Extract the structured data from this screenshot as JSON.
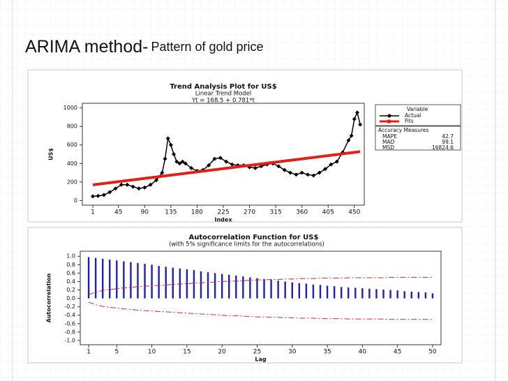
{
  "header": {
    "title": "ARIMA method-",
    "subtitle": "Pattern of gold price"
  },
  "chart_data": [
    {
      "type": "line",
      "title": "Trend Analysis Plot for US$",
      "subtitle": [
        "Linear Trend Model",
        "Yt = 168.5 + 0.781*t"
      ],
      "x_label": "Index",
      "y_label": "US$",
      "x": [
        1,
        10,
        20,
        30,
        40,
        50,
        60,
        70,
        80,
        90,
        100,
        110,
        120,
        125,
        130,
        135,
        140,
        145,
        150,
        155,
        160,
        170,
        180,
        190,
        200,
        210,
        220,
        230,
        240,
        250,
        260,
        270,
        280,
        290,
        300,
        310,
        320,
        330,
        340,
        350,
        360,
        370,
        380,
        390,
        400,
        410,
        420,
        430,
        440,
        445,
        450,
        455,
        460
      ],
      "series": [
        {
          "name": "Actual",
          "color": "#000000",
          "values": [
            45,
            50,
            60,
            90,
            130,
            170,
            170,
            150,
            130,
            140,
            170,
            220,
            300,
            450,
            670,
            600,
            500,
            420,
            400,
            420,
            400,
            350,
            320,
            330,
            380,
            450,
            460,
            420,
            390,
            380,
            380,
            360,
            350,
            370,
            390,
            400,
            370,
            330,
            300,
            280,
            300,
            280,
            270,
            300,
            340,
            390,
            420,
            520,
            650,
            700,
            880,
            950,
            820
          ]
        },
        {
          "name": "Fits",
          "color": "#e0201b",
          "values": [
            169.3,
            176.3,
            184.1,
            191.9,
            199.7,
            207.6,
            215.4,
            223.2,
            231,
            238.8,
            246.6,
            254.4,
            262.2,
            266.1,
            270,
            273.9,
            277.8,
            281.7,
            285.7,
            289.6,
            293.5,
            301.3,
            309.1,
            316.9,
            324.7,
            332.5,
            340.3,
            348.1,
            355.9,
            363.8,
            371.6,
            379.4,
            387.2,
            395,
            402.8,
            410.6,
            418.4,
            426.2,
            434,
            441.9,
            449.7,
            457.5,
            465.3,
            473.1,
            480.9,
            488.7,
            496.5,
            504.3,
            512.1,
            516,
            519.9,
            523.9,
            527.8
          ]
        }
      ],
      "legend_title": "Variable",
      "accuracy_measures": {
        "title": "Accuracy Measures",
        "rows": [
          [
            "MAPE",
            "42.7"
          ],
          [
            "MAD",
            "99.1"
          ],
          [
            "MSD",
            "16824.6"
          ]
        ]
      },
      "xlim": [
        -17,
        467
      ],
      "ylim": [
        -50,
        1050
      ],
      "xticks": [
        1,
        45,
        90,
        135,
        180,
        225,
        270,
        315,
        360,
        405,
        450
      ],
      "yticks": [
        0,
        200,
        400,
        600,
        800,
        1000
      ]
    },
    {
      "type": "bar",
      "title": "Autocorrelation Function for US$",
      "subtitle": "(with 5% significance limits for the autocorrelations)",
      "x_label": "Lag",
      "y_label": "Autocorrelation",
      "color": "#1f1fb4",
      "x": [
        1,
        2,
        3,
        4,
        5,
        6,
        7,
        8,
        9,
        10,
        11,
        12,
        13,
        14,
        15,
        16,
        17,
        18,
        19,
        20,
        21,
        22,
        23,
        24,
        25,
        26,
        27,
        28,
        29,
        30,
        31,
        32,
        33,
        34,
        35,
        36,
        37,
        38,
        39,
        40,
        41,
        42,
        43,
        44,
        45,
        46,
        47,
        48,
        49,
        50
      ],
      "values": [
        0.98,
        0.96,
        0.94,
        0.92,
        0.9,
        0.88,
        0.86,
        0.84,
        0.82,
        0.8,
        0.77,
        0.75,
        0.73,
        0.71,
        0.69,
        0.67,
        0.64,
        0.62,
        0.6,
        0.58,
        0.56,
        0.54,
        0.52,
        0.5,
        0.48,
        0.46,
        0.44,
        0.42,
        0.4,
        0.38,
        0.36,
        0.35,
        0.33,
        0.32,
        0.3,
        0.29,
        0.27,
        0.26,
        0.25,
        0.24,
        0.23,
        0.22,
        0.21,
        0.2,
        0.19,
        0.17,
        0.16,
        0.15,
        0.14,
        0.12
      ],
      "limits": {
        "color": "#c62828",
        "upper": [
          0.09,
          0.15,
          0.19,
          0.21,
          0.23,
          0.25,
          0.26,
          0.28,
          0.29,
          0.3,
          0.31,
          0.32,
          0.33,
          0.34,
          0.35,
          0.36,
          0.37,
          0.38,
          0.39,
          0.4,
          0.41,
          0.41,
          0.42,
          0.43,
          0.44,
          0.44,
          0.45,
          0.45,
          0.46,
          0.46,
          0.47,
          0.47,
          0.47,
          0.48,
          0.48,
          0.48,
          0.48,
          0.49,
          0.49,
          0.49,
          0.49,
          0.49,
          0.49,
          0.5,
          0.5,
          0.5,
          0.5,
          0.5,
          0.5,
          0.5
        ],
        "lower": [
          -0.09,
          -0.15,
          -0.19,
          -0.21,
          -0.23,
          -0.25,
          -0.26,
          -0.28,
          -0.29,
          -0.3,
          -0.31,
          -0.32,
          -0.33,
          -0.34,
          -0.35,
          -0.36,
          -0.37,
          -0.38,
          -0.39,
          -0.4,
          -0.41,
          -0.41,
          -0.42,
          -0.43,
          -0.44,
          -0.44,
          -0.45,
          -0.45,
          -0.46,
          -0.46,
          -0.47,
          -0.47,
          -0.47,
          -0.48,
          -0.48,
          -0.48,
          -0.48,
          -0.49,
          -0.49,
          -0.49,
          -0.49,
          -0.49,
          -0.49,
          -0.5,
          -0.5,
          -0.5,
          -0.5,
          -0.5,
          -0.5,
          -0.5
        ]
      },
      "xlim": [
        -0.2,
        51.2
      ],
      "ylim": [
        -1.1,
        1.12
      ],
      "xticks": [
        1,
        5,
        10,
        15,
        20,
        25,
        30,
        35,
        40,
        45,
        50
      ],
      "yticks": [
        {
          "value": 1,
          "label": "1.0"
        },
        0.8,
        0.6,
        0.4,
        0.2,
        {
          "value": 0,
          "label": "0.0"
        },
        -0.2,
        -0.4,
        -0.6,
        -0.8,
        {
          "value": -1,
          "label": "-1.0"
        }
      ]
    }
  ]
}
